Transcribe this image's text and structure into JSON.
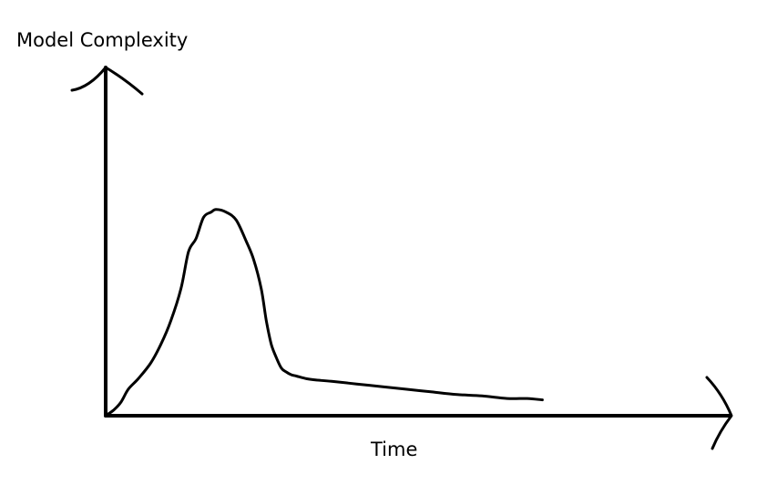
{
  "chart_data": {
    "type": "line",
    "title": "",
    "xlabel": "Time",
    "ylabel": "Model Complexity",
    "xlim": [
      0,
      100
    ],
    "ylim": [
      0,
      100
    ],
    "grid": false,
    "legend": "none",
    "x_ticks": [],
    "y_ticks": [],
    "series": [
      {
        "color": "#000000",
        "x": [
          0,
          1.5,
          3,
          4.5,
          6.5,
          9,
          11,
          13,
          15,
          16.5,
          18,
          19.5,
          21,
          22,
          24,
          26,
          28,
          29.5,
          31,
          32,
          33,
          34,
          35,
          36,
          37,
          38,
          40,
          42,
          45,
          50,
          55,
          60,
          65,
          70,
          75,
          80,
          84,
          87
        ],
        "values": [
          0,
          2,
          5,
          10,
          14,
          20,
          27,
          36,
          48,
          62,
          67,
          75,
          77,
          78,
          77,
          74,
          66,
          59,
          48,
          36,
          27,
          22,
          18,
          16.5,
          15.5,
          15,
          14,
          13.5,
          13,
          12,
          11,
          10,
          9,
          8,
          7.5,
          6.5,
          6.5,
          6
        ]
      }
    ],
    "ink_color": "#000000"
  }
}
